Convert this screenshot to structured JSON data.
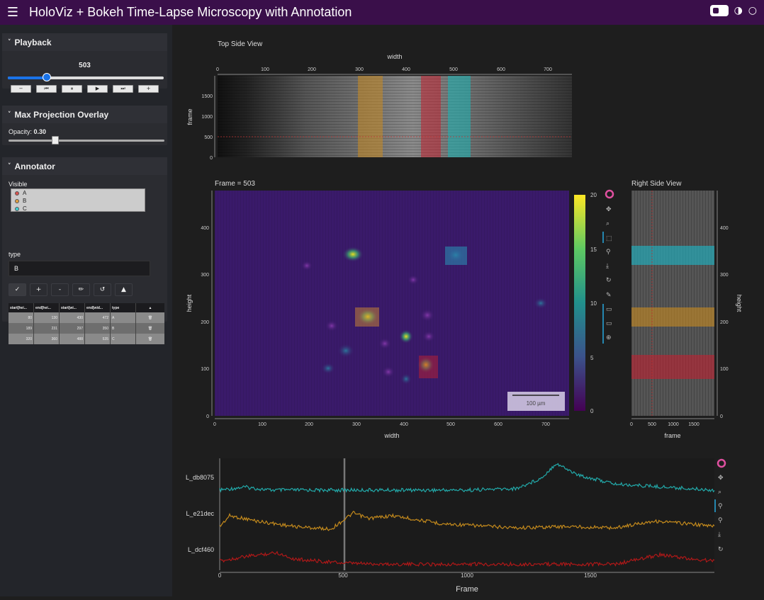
{
  "app": {
    "title": "HoloViz + Bokeh Time-Lapse Microscopy with Annotation",
    "menu_icon": "hamburger-icon"
  },
  "sidebar": {
    "playback": {
      "title": "Playback",
      "frame": 503,
      "frame_min": 0,
      "frame_max": 1999,
      "buttons": [
        "−",
        "⏮",
        "⏸",
        "▶",
        "⏭",
        "+"
      ]
    },
    "max_projection": {
      "title": "Max Projection Overlay",
      "opacity_label": "Opacity:",
      "opacity": "0.30"
    },
    "annotator": {
      "title": "Annotator",
      "visible_label": "Visible",
      "visible_items": [
        {
          "label": "A",
          "color": "#d9534f"
        },
        {
          "label": "B",
          "color": "#e0a040"
        },
        {
          "label": "C",
          "color": "#3ed0d0"
        }
      ],
      "type_label": "type",
      "type_value": "B",
      "tools": [
        "✓",
        "+",
        "-",
        "✏",
        "↺",
        "▲"
      ],
      "table": {
        "headers": [
          "start[hei...",
          "end[hei...",
          "start[wi...",
          "end[wid...",
          "type",
          "▲"
        ],
        "rows": [
          [
            "80",
            "130",
            "430",
            "472",
            "A"
          ],
          [
            "189",
            "231",
            "297",
            "350",
            "B"
          ],
          [
            "320",
            "360",
            "488",
            "535",
            "C"
          ]
        ]
      }
    }
  },
  "plots": {
    "top": {
      "title": "Top Side View",
      "xlabel": "width",
      "ylabel": "frame",
      "xticks": [
        "0",
        "100",
        "200",
        "300",
        "400",
        "500",
        "600",
        "700"
      ],
      "yticks": [
        "0",
        "500",
        "1000",
        "1500"
      ]
    },
    "main": {
      "title": "Frame = 503",
      "xlabel": "width",
      "ylabel": "height",
      "xticks": [
        "0",
        "100",
        "200",
        "300",
        "400",
        "500",
        "600",
        "700"
      ],
      "yticks": [
        "0",
        "100",
        "200",
        "300",
        "400"
      ],
      "colorbar_ticks": [
        "0",
        "5",
        "10",
        "15",
        "20"
      ],
      "scalebar": "100 µm"
    },
    "right": {
      "title": "Right Side View",
      "xlabel": "frame",
      "ylabel": "height",
      "xticks": [
        "0",
        "500",
        "1000",
        "1500"
      ],
      "yticks": [
        "0",
        "100",
        "200",
        "300",
        "400"
      ]
    },
    "bottom": {
      "xlabel": "Frame",
      "xticks": [
        "0",
        "500",
        "1000",
        "1500"
      ],
      "series_labels": [
        "L_db8075",
        "L_e21dec",
        "L_dcf460"
      ]
    }
  },
  "colors": {
    "header_bg": "#3a0f4a",
    "annotation_A": "#d9534f",
    "annotation_B": "#e0a040",
    "annotation_C": "#3ed0d0",
    "trace_1": "#22aaaa",
    "trace_2": "#c48a1c",
    "trace_3": "#b01818"
  },
  "chart_data": {
    "type": "line",
    "x_range": [
      0,
      2000
    ],
    "cursor_frame": 503,
    "series": [
      {
        "name": "L_db8075",
        "x": [
          0,
          100,
          200,
          400,
          600,
          800,
          1000,
          1200,
          1300,
          1360,
          1450,
          1600,
          1800,
          2000
        ],
        "y": [
          0.1,
          0.2,
          0.1,
          0.1,
          0.1,
          0.1,
          0.1,
          0.15,
          0.5,
          1.0,
          0.6,
          0.3,
          0.2,
          0.1
        ]
      },
      {
        "name": "L_e21dec",
        "x": [
          0,
          40,
          150,
          300,
          450,
          540,
          600,
          700,
          900,
          1200,
          1400,
          1600,
          1750,
          1900,
          2000
        ],
        "y": [
          0.1,
          0.5,
          0.3,
          0.1,
          0.0,
          0.6,
          0.4,
          0.5,
          0.2,
          0.05,
          0.1,
          0.05,
          0.3,
          0.2,
          0.1
        ]
      },
      {
        "name": "L_dcf460",
        "x": [
          0,
          100,
          230,
          300,
          500,
          700,
          1000,
          1300,
          1600,
          1700,
          1780,
          1900,
          2000
        ],
        "y": [
          0.2,
          0.4,
          0.6,
          0.3,
          0.1,
          0.05,
          0.05,
          0.05,
          0.05,
          0.3,
          0.5,
          0.3,
          0.2
        ]
      }
    ]
  }
}
